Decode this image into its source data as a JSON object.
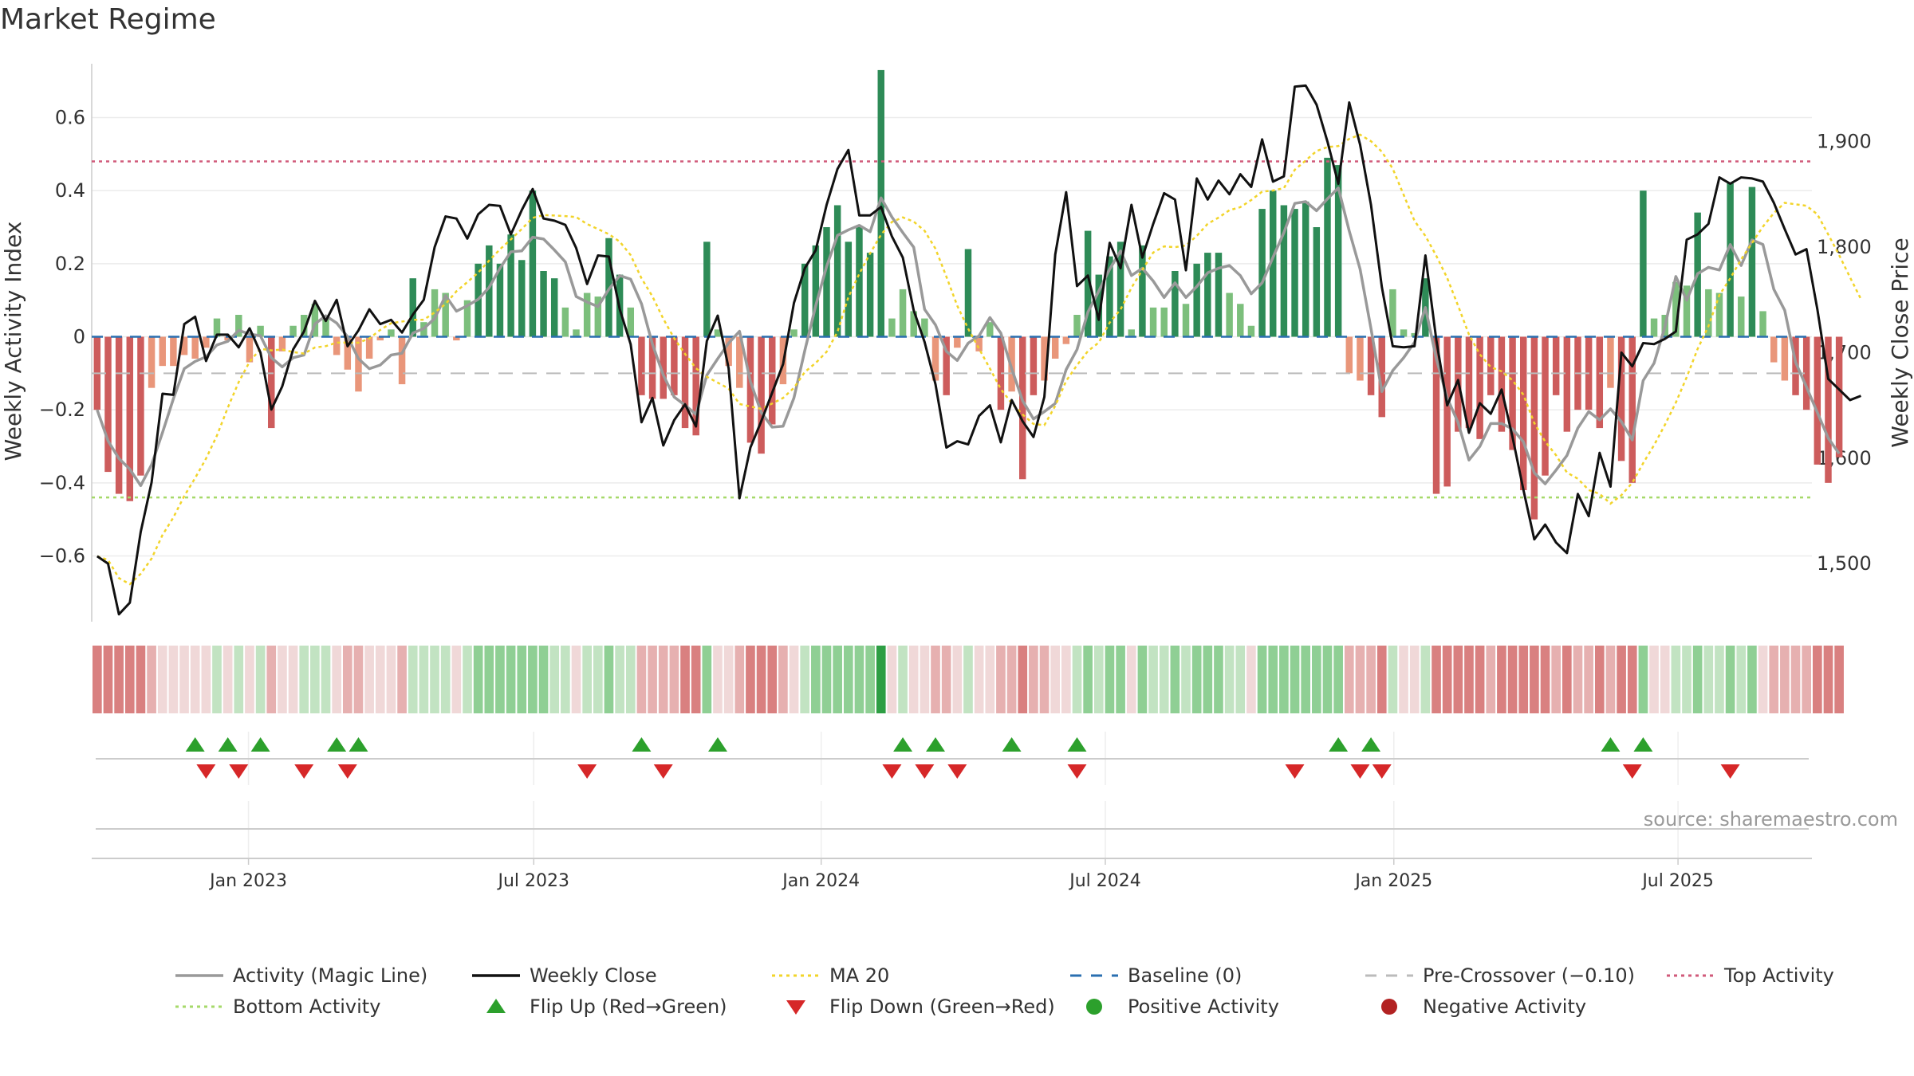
{
  "title": "Market Regime",
  "source": "source: sharemaestro.com",
  "colors": {
    "green_dark": "#2e8b57",
    "green_mid": "#7cbf7c",
    "red_dark": "#cd5c5c",
    "red_light": "#e9967a",
    "weekly_close": "#111111",
    "magic_line": "#999999",
    "ma20": "#f2d42a",
    "baseline": "#2a6fb0",
    "pre_crossover": "#bbbbbb",
    "top_activity": "#d05a7a",
    "bottom_activity": "#a6d96a",
    "flip_up": "#2ca02c",
    "flip_down": "#d62728",
    "positive_dot": "#2ca02c",
    "negative_dot": "#b22222"
  },
  "chart_data": {
    "type": "bar",
    "title": "Market Regime",
    "ylabel_left": "Weekly Activity Index",
    "ylabel_right": "Weekly Close Price",
    "ylim_left": [
      -0.78,
      0.78
    ],
    "ylim_right": [
      1445,
      1985
    ],
    "yticks_left": [
      0.6,
      0.4,
      0.2,
      0,
      -0.2,
      -0.4,
      -0.6
    ],
    "ytick_labels_left": [
      "0.6",
      "0.4",
      "0.2",
      "0",
      "−0.2",
      "−0.4",
      "−0.6"
    ],
    "yticks_right": [
      1900,
      1800,
      1700,
      1600,
      1500
    ],
    "ytick_labels_right": [
      "1,900",
      "1,800",
      "1,700",
      "1,600",
      "1,500"
    ],
    "x_range_weeks": [
      0,
      158
    ],
    "x_tick_weeks": [
      14.4,
      40.6,
      67.0,
      93.1,
      119.6,
      145.7
    ],
    "x_tick_labels": [
      "Jan 2023",
      "Jul 2023",
      "Jan 2024",
      "Jul 2024",
      "Jan 2025",
      "Jul 2025"
    ],
    "reference_lines": {
      "top_activity": 0.48,
      "bottom_activity": -0.44,
      "baseline": 0,
      "pre_crossover": -0.1
    },
    "activity": [
      -0.2,
      -0.37,
      -0.43,
      -0.45,
      -0.38,
      -0.14,
      -0.08,
      -0.08,
      -0.05,
      -0.06,
      -0.03,
      0.05,
      -0.01,
      0.06,
      -0.07,
      0.03,
      -0.25,
      -0.04,
      0.03,
      0.06,
      0.09,
      0.05,
      -0.05,
      -0.09,
      -0.15,
      -0.06,
      -0.01,
      0.02,
      -0.13,
      0.16,
      0.04,
      0.13,
      0.12,
      -0.01,
      0.1,
      0.2,
      0.25,
      0.2,
      0.28,
      0.21,
      0.4,
      0.18,
      0.16,
      0.08,
      0.02,
      0.12,
      0.11,
      0.27,
      0.17,
      0.08,
      -0.16,
      -0.17,
      -0.17,
      -0.16,
      -0.25,
      -0.27,
      0.26,
      0.02,
      -0.08,
      -0.14,
      -0.29,
      -0.32,
      -0.24,
      -0.13,
      0.02,
      0.2,
      0.25,
      0.3,
      0.36,
      0.26,
      0.3,
      0.23,
      0.73,
      0.05,
      0.13,
      0.07,
      0.05,
      -0.12,
      -0.16,
      -0.03,
      0.24,
      -0.04,
      0.04,
      -0.2,
      -0.15,
      -0.39,
      -0.16,
      -0.12,
      -0.06,
      -0.02,
      0.06,
      0.29,
      0.17,
      0.22,
      0.26,
      0.02,
      0.25,
      0.08,
      0.08,
      0.18,
      0.09,
      0.2,
      0.23,
      0.23,
      0.12,
      0.09,
      0.03,
      0.35,
      0.4,
      0.36,
      0.35,
      0.37,
      0.3,
      0.49,
      0.47,
      -0.1,
      -0.12,
      -0.16,
      -0.22,
      0.13,
      0.02,
      0.01,
      0.16,
      -0.43,
      -0.41,
      -0.26,
      -0.25,
      -0.28,
      -0.16,
      -0.26,
      -0.31,
      -0.42,
      -0.5,
      -0.38,
      -0.16,
      -0.26,
      -0.2,
      -0.2,
      -0.25,
      -0.14,
      -0.34,
      -0.4,
      0.4,
      0.05,
      0.06,
      0.15,
      0.14,
      0.34,
      0.13,
      0.12,
      0.42,
      0.11,
      0.41,
      0.07,
      -0.07,
      -0.12,
      -0.16,
      -0.2,
      -0.35,
      -0.4,
      -0.33
    ],
    "weekly_close": [
      1507,
      1500,
      1452,
      1463,
      1530,
      1577,
      1661,
      1660,
      1727,
      1734,
      1692,
      1717,
      1717,
      1705,
      1723,
      1700,
      1646,
      1668,
      1703,
      1720,
      1749,
      1730,
      1750,
      1706,
      1721,
      1741,
      1727,
      1731,
      1719,
      1736,
      1750,
      1800,
      1829,
      1827,
      1808,
      1831,
      1840,
      1839,
      1812,
      1835,
      1855,
      1827,
      1825,
      1821,
      1799,
      1765,
      1792,
      1791,
      1741,
      1708,
      1634,
      1657,
      1612,
      1636,
      1651,
      1630,
      1711,
      1735,
      1685,
      1562,
      1610,
      1635,
      1662,
      1689,
      1747,
      1780,
      1797,
      1840,
      1874,
      1892,
      1830,
      1830,
      1838,
      1810,
      1790,
      1740,
      1710,
      1670,
      1610,
      1616,
      1613,
      1640,
      1650,
      1615,
      1655,
      1635,
      1620,
      1658,
      1793,
      1852,
      1763,
      1773,
      1731,
      1804,
      1780,
      1840,
      1790,
      1822,
      1851,
      1845,
      1778,
      1865,
      1845,
      1863,
      1850,
      1869,
      1857,
      1902,
      1862,
      1867,
      1952,
      1953,
      1935,
      1900,
      1860,
      1937,
      1897,
      1840,
      1762,
      1706,
      1705,
      1706,
      1792,
      1712,
      1650,
      1674,
      1624,
      1652,
      1642,
      1665,
      1620,
      1570,
      1523,
      1537,
      1520,
      1510,
      1566,
      1545,
      1605,
      1573,
      1700,
      1687,
      1709,
      1708,
      1713,
      1720,
      1807,
      1812,
      1822,
      1866,
      1860,
      1866,
      1865,
      1862,
      1842,
      1817,
      1793,
      1798,
      1741,
      1675,
      1665,
      1655,
      1659
    ]
  },
  "regime_strip": [
    -2,
    -2,
    -2,
    -2,
    -2,
    -1,
    0,
    0,
    0,
    0,
    0,
    1,
    0,
    1,
    0,
    1,
    -1,
    0,
    0,
    1,
    1,
    1,
    0,
    -1,
    -1,
    0,
    0,
    0,
    -1,
    1,
    1,
    1,
    1,
    0,
    1,
    2,
    2,
    2,
    2,
    2,
    2,
    2,
    1,
    1,
    0,
    1,
    1,
    2,
    1,
    1,
    -1,
    -1,
    -1,
    -1,
    -2,
    -2,
    2,
    0,
    0,
    -1,
    -2,
    -2,
    -2,
    -1,
    0,
    1,
    2,
    2,
    2,
    2,
    2,
    2,
    3,
    0,
    1,
    0,
    0,
    -1,
    -1,
    0,
    1,
    0,
    0,
    -1,
    -1,
    -2,
    -1,
    -1,
    0,
    0,
    1,
    2,
    1,
    2,
    2,
    0,
    2,
    1,
    1,
    2,
    1,
    2,
    2,
    2,
    1,
    1,
    0,
    2,
    2,
    2,
    2,
    2,
    2,
    2,
    2,
    -1,
    -1,
    -1,
    -2,
    1,
    0,
    0,
    1,
    -2,
    -2,
    -2,
    -2,
    -2,
    -1,
    -2,
    -2,
    -2,
    -2,
    -2,
    -1,
    -2,
    -1,
    -1,
    -2,
    -1,
    -2,
    -2,
    2,
    0,
    0,
    1,
    1,
    2,
    1,
    1,
    2,
    1,
    2,
    0,
    -1,
    -1,
    -1,
    -1,
    -2,
    -2,
    -2
  ],
  "flips_up_weeks": [
    9,
    12,
    15,
    22,
    24,
    50,
    57,
    74,
    77,
    84,
    90,
    114,
    117,
    139,
    142
  ],
  "flips_down_weeks": [
    10,
    13,
    19,
    23,
    45,
    52,
    73,
    76,
    79,
    90,
    110,
    116,
    118,
    141,
    150
  ],
  "legend": [
    {
      "label": "Activity (Magic Line)",
      "icon": "solid-line",
      "color": "#999999"
    },
    {
      "label": "Weekly Close",
      "icon": "solid-line",
      "color": "#111111"
    },
    {
      "label": "MA 20",
      "icon": "dotted-line",
      "color": "#f2d42a"
    },
    {
      "label": "Baseline (0)",
      "icon": "dashed-line",
      "color": "#2a6fb0"
    },
    {
      "label": "Pre-Crossover (−0.10)",
      "icon": "dashed-line",
      "color": "#bbbbbb"
    },
    {
      "label": "Top Activity",
      "icon": "dotted-line",
      "color": "#d05a7a"
    },
    {
      "label": "Bottom Activity",
      "icon": "dotted-line",
      "color": "#a6d96a"
    },
    {
      "label": "Flip Up (Red→Green)",
      "icon": "triangle-up-icon",
      "color": "#2ca02c"
    },
    {
      "label": "Flip Down (Green→Red)",
      "icon": "triangle-down-icon",
      "color": "#d62728"
    },
    {
      "label": "Positive Activity",
      "icon": "circle-icon",
      "color": "#2ca02c"
    },
    {
      "label": "Negative Activity",
      "icon": "circle-icon",
      "color": "#b22222"
    }
  ]
}
